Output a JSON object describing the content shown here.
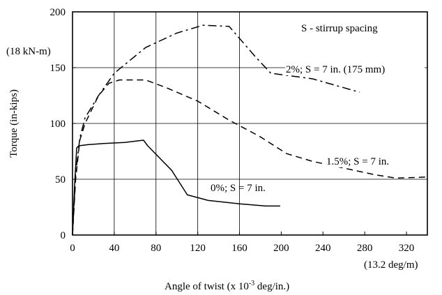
{
  "chart_data": {
    "type": "line",
    "title": "",
    "xlabel": "Angle of twist (x 10 -3 deg/in.)",
    "xlabel_base": "Angle of twist (x 10",
    "xlabel_exp": "-3",
    "xlabel_tail": " deg/in.)",
    "ylabel": "Torque (in-kips)",
    "xlim": [
      0,
      340
    ],
    "ylim": [
      0,
      200
    ],
    "x_ticks": [
      0,
      40,
      80,
      120,
      160,
      200,
      240,
      280,
      320
    ],
    "y_ticks": [
      0,
      50,
      100,
      150,
      200
    ],
    "grid": "horizontal at 50, 100, 150; vertical at 40, 80, 120, 160",
    "legend_note": "S - stirrup spacing",
    "unit_y_note": "(18 kN-m)",
    "unit_x_note": "(13.2 deg/m)",
    "series": [
      {
        "name": "0%;   S = 7 in.",
        "style": "solid",
        "points": [
          [
            0,
            0
          ],
          [
            2,
            45
          ],
          [
            4,
            78
          ],
          [
            6,
            80
          ],
          [
            15,
            81
          ],
          [
            30,
            82
          ],
          [
            50,
            83
          ],
          [
            68,
            85
          ],
          [
            72,
            80
          ],
          [
            95,
            58
          ],
          [
            110,
            36
          ],
          [
            130,
            31
          ],
          [
            160,
            28
          ],
          [
            185,
            26
          ],
          [
            199,
            26
          ]
        ]
      },
      {
        "name": "1.5%;   S = 7 in.",
        "style": "dashed",
        "points": [
          [
            0,
            0
          ],
          [
            3,
            50
          ],
          [
            7,
            85
          ],
          [
            12,
            100
          ],
          [
            25,
            125
          ],
          [
            35,
            136
          ],
          [
            45,
            139
          ],
          [
            70,
            139
          ],
          [
            90,
            132
          ],
          [
            120,
            120
          ],
          [
            150,
            103
          ],
          [
            180,
            88
          ],
          [
            205,
            73
          ],
          [
            230,
            66
          ],
          [
            260,
            60
          ],
          [
            290,
            54
          ],
          [
            310,
            51
          ],
          [
            340,
            52
          ]
        ]
      },
      {
        "name": "2%; S = 7 in. (175 mm)",
        "style": "dash-dot",
        "points": [
          [
            0,
            0
          ],
          [
            3,
            55
          ],
          [
            7,
            87
          ],
          [
            12,
            105
          ],
          [
            25,
            125
          ],
          [
            40,
            145
          ],
          [
            70,
            168
          ],
          [
            100,
            181
          ],
          [
            125,
            188
          ],
          [
            150,
            187
          ],
          [
            175,
            160
          ],
          [
            190,
            145
          ],
          [
            230,
            140
          ],
          [
            275,
            128
          ]
        ]
      }
    ]
  }
}
